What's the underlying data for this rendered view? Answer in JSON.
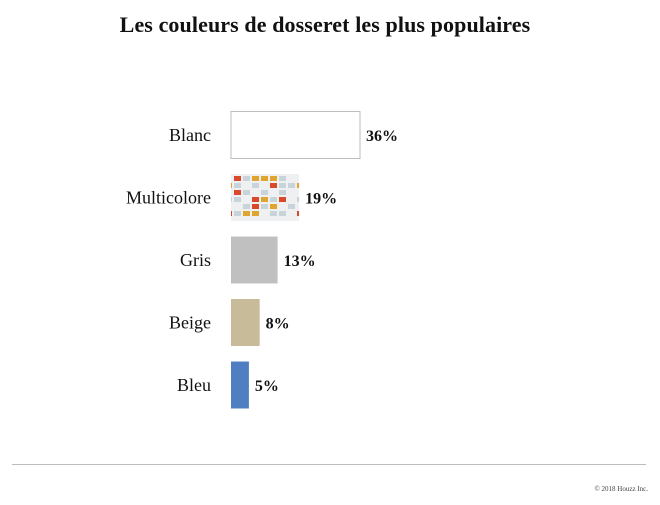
{
  "chart_data": {
    "type": "bar",
    "orientation": "horizontal",
    "title": "Les couleurs de dosseret les plus populaires",
    "categories": [
      "Blanc",
      "Multicolore",
      "Gris",
      "Beige",
      "Bleu"
    ],
    "values": [
      36,
      19,
      13,
      8,
      5
    ],
    "value_labels": [
      "36%",
      "19%",
      "13%",
      "8%",
      "5%"
    ],
    "unit": "%",
    "bar_colors": [
      "#ffffff",
      "multicolor-tile-pattern",
      "#c0c0c0",
      "#c7bb9a",
      "#4f7fc0"
    ],
    "xlabel": "",
    "ylabel": "",
    "grid": false,
    "legend": "none"
  },
  "footer": {
    "credit": "© 2018 Houzz Inc."
  }
}
